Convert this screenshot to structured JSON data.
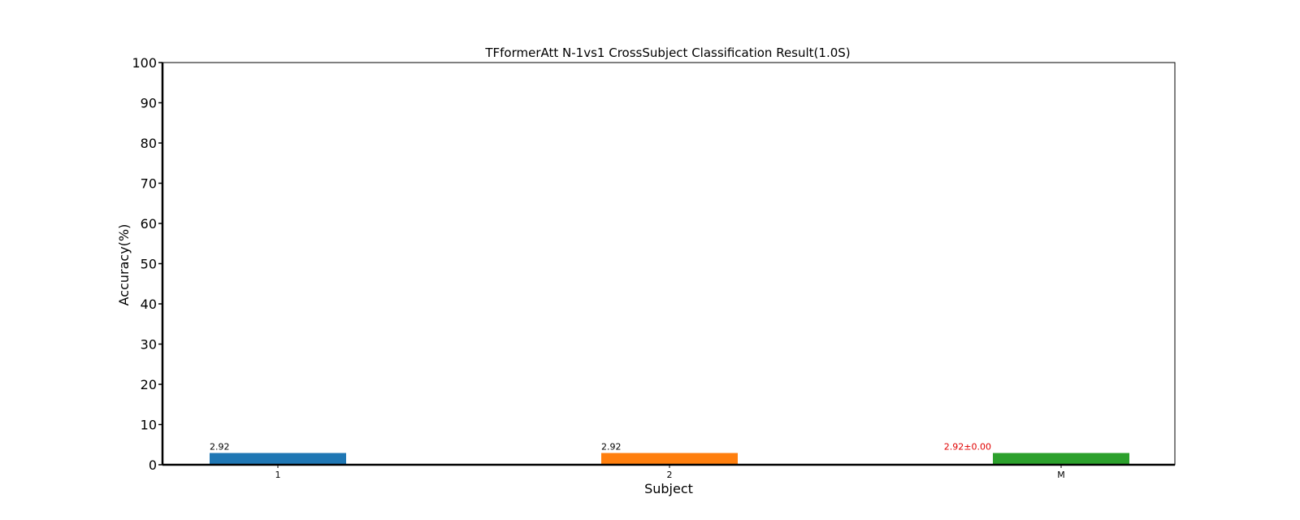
{
  "chart_data": {
    "type": "bar",
    "title": "TFformerAtt N-1vs1 CrossSubject Classification Result(1.0S)",
    "xlabel": "Subject",
    "ylabel": "Accuracy(%)",
    "ylim": [
      0,
      100
    ],
    "yticks": [
      0,
      10,
      20,
      30,
      40,
      50,
      60,
      70,
      80,
      90,
      100
    ],
    "categories": [
      "1",
      "2",
      "M"
    ],
    "values": [
      2.92,
      2.92,
      2.92
    ],
    "bar_labels": [
      "2.92",
      "2.92",
      "2.92±0.00"
    ],
    "bar_colors": [
      "#1f77b4",
      "#ff7f0e",
      "#2ca02c"
    ],
    "bar_label_colors": [
      "#000000",
      "#000000",
      "#e00000"
    ],
    "grid": false,
    "legend": "none"
  }
}
